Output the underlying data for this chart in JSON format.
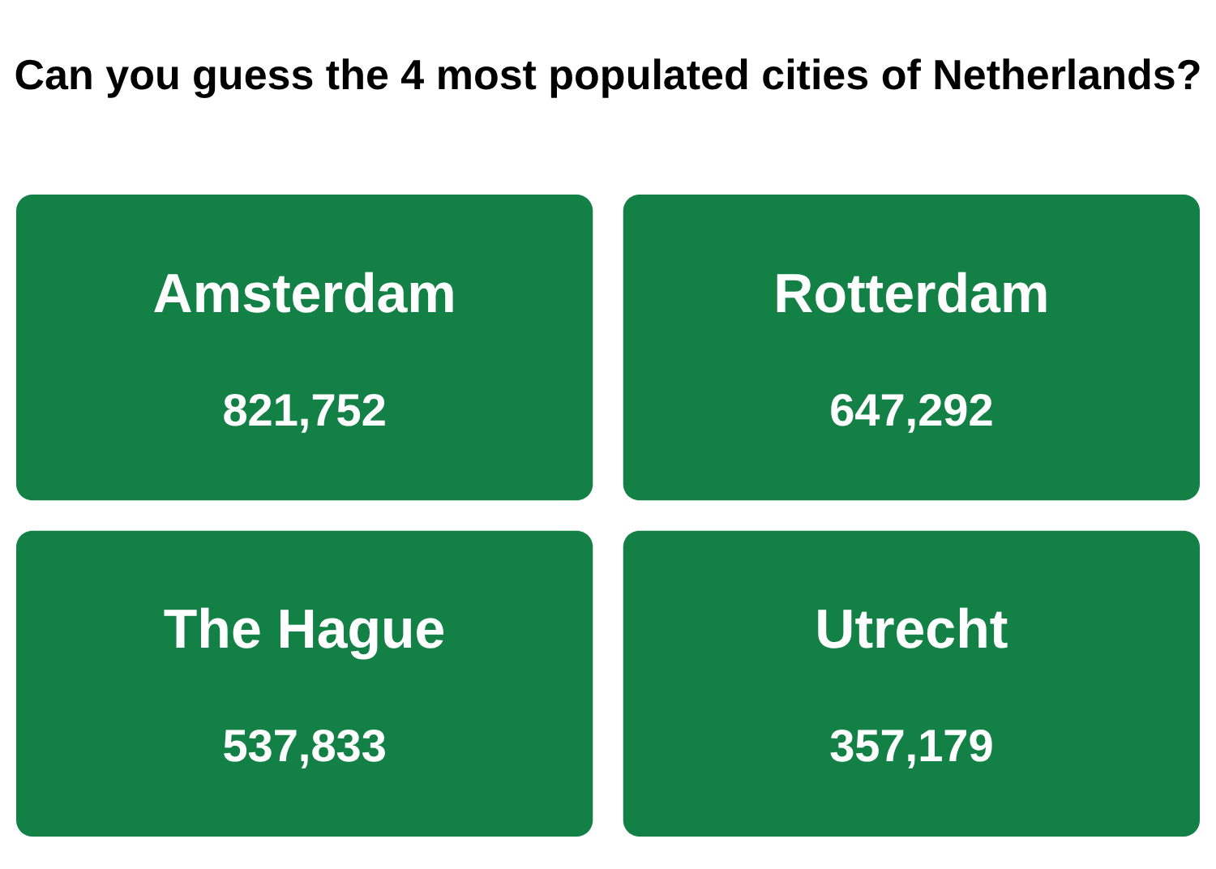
{
  "chart_data": {
    "type": "other",
    "title": "Can you guess the 4 most populated cities of Netherlands?",
    "categories": [
      "Amsterdam",
      "Rotterdam",
      "The Hague",
      "Utrecht"
    ],
    "color": "#138046",
    "values": [
      821752,
      647292,
      537833,
      357179
    ],
    "value_labels": [
      "821,752",
      "647,292",
      "537,833",
      "357,179"
    ]
  }
}
